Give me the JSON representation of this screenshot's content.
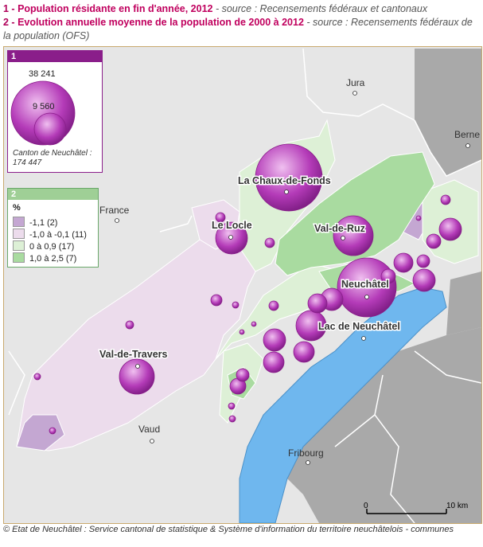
{
  "title": {
    "line1_num": "1 -",
    "line1_title": "Population résidante en fin d'année, 2012",
    "line1_source": "- source : Recensements fédéraux et cantonaux",
    "line2_num": "2 -",
    "line2_title": "Evolution annuelle moyenne de la population de 2000 à 2012",
    "line2_source": "- source : Recensements fédéraux de la population (OFS)"
  },
  "legend1": {
    "header": "1",
    "big_value": "38 241",
    "small_value": "9 560",
    "canton_label": "Canton de Neuchâtel :",
    "canton_value": "174 447"
  },
  "legend2": {
    "header": "2",
    "unit": "%",
    "classes": [
      {
        "label": "-1,1 (2)",
        "color": "#c4a7d2"
      },
      {
        "label": "-1,0 à -0,1 (11)",
        "color": "#ecdcec"
      },
      {
        "label": "0 à 0,9 (17)",
        "color": "#ddf0d6"
      },
      {
        "label": "1,0 à 2,5 (7)",
        "color": "#a9dba0"
      }
    ]
  },
  "places": {
    "jura": "Jura",
    "berne": "Berne",
    "france": "France",
    "vaud": "Vaud",
    "fribourg": "Fribourg",
    "chaux_de_fonds": "La Chaux-de-Fonds",
    "le_locle": "Le Locle",
    "val_de_ruz": "Val-de-Ruz",
    "neuchatel": "Neuchâtel",
    "lac": "Lac de Neuchâtel",
    "val_de_travers": "Val-de-Travers"
  },
  "scale": {
    "zero": "0",
    "ten": "10 km"
  },
  "colors": {
    "lake": "#6fb7ee",
    "neighbor_land": "#e6e6e6",
    "dark_land": "#a9a9a9",
    "bubble": "#b43bb8",
    "frame": "#c9a96e"
  },
  "footer": "© Etat de Neuchâtel : Service cantonal de statistique & Système d'information du territoire neuchâtelois - communes"
}
